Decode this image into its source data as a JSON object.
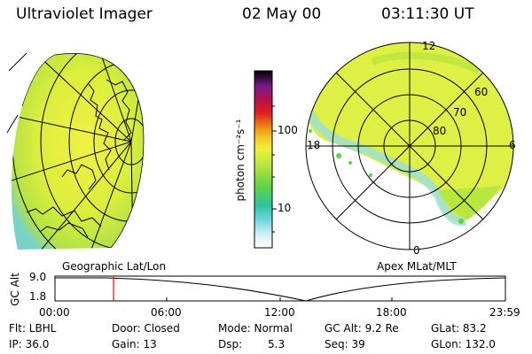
{
  "header": {
    "instrument": "Ultraviolet Imager",
    "date": "02 May 00",
    "time": "03:11:30 UT"
  },
  "geo_panel": {
    "label": "Geographic Lat/Lon"
  },
  "colorbar": {
    "unit_label": "photon cm⁻²s⁻¹",
    "ticks": [
      "100",
      "10"
    ]
  },
  "polar_panel": {
    "label": "Apex MLat/MLT",
    "mlt_labels": {
      "top": "12",
      "left": "18",
      "right": "6",
      "bottom": "0"
    },
    "lat_labels": [
      "60",
      "70",
      "80"
    ]
  },
  "altitude_plot": {
    "ylabel": "GC Alt",
    "y_ticks": [
      "9.0",
      "1.8"
    ],
    "x_ticks": [
      "00:00",
      "06:00",
      "12:00",
      "18:00",
      "23:59"
    ],
    "marker_time": "03:11"
  },
  "status": {
    "flt": "Flt: LBHL",
    "door": "Door: Closed",
    "mode": "Mode: Normal",
    "gc_alt": "GC Alt: 9.2 Re",
    "glat": "GLat: 83.2",
    "ip": "IP: 36.0",
    "gain": "Gain: 13",
    "dsp_label": "Dsp:",
    "dsp_value": "5.3",
    "seq": "Seq: 39",
    "glon": "GLon: 132.0"
  },
  "colors": {
    "aurora_yellow": "#e6f03c",
    "aurora_green": "#b4e63c",
    "aurora_cyan": "#64d2dc",
    "marker_red": "#ff0000"
  }
}
